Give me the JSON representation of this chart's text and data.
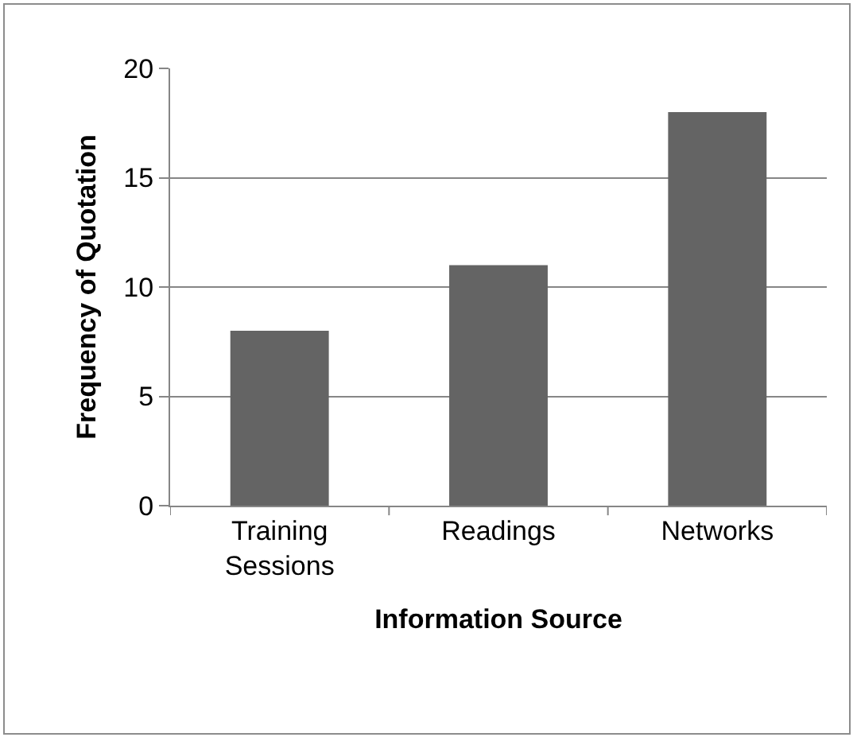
{
  "chart_data": {
    "type": "bar",
    "xlabel": "Information Source",
    "ylabel": "Frequency of Quotation",
    "categories": [
      "Training Sessions",
      "Readings",
      "Networks"
    ],
    "values": [
      8,
      11,
      18
    ],
    "color": "#646464",
    "ylim": [
      0,
      20
    ],
    "yticks": [
      0,
      5,
      10,
      15,
      20
    ],
    "grid": "y"
  }
}
